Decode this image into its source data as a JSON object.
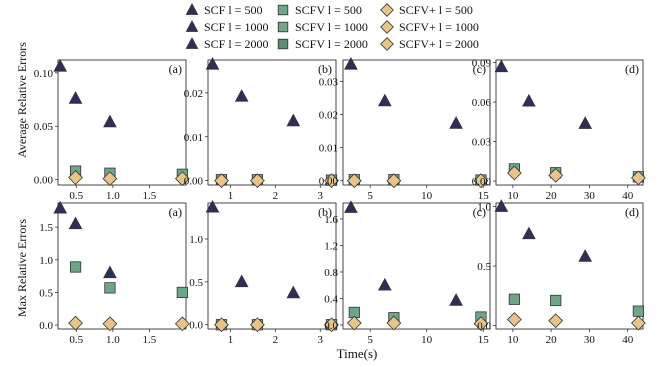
{
  "legend": [
    {
      "method": "SCF",
      "label": "SCF l = 500",
      "marker": "triangle",
      "color": "#2e2e5a"
    },
    {
      "method": "SCF",
      "label": "SCF l = 1000",
      "marker": "triangle",
      "color": "#2e2e5a"
    },
    {
      "method": "SCF",
      "label": "SCF l = 2000",
      "marker": "triangle",
      "color": "#2e2e5a"
    },
    {
      "method": "SCFV",
      "label": "SCFV l = 500",
      "marker": "square",
      "color": "#6ea68a"
    },
    {
      "method": "SCFV",
      "label": "SCFV l = 1000",
      "marker": "square",
      "color": "#6ea68a"
    },
    {
      "method": "SCFV",
      "label": "SCFV l = 2000",
      "marker": "square",
      "color": "#5a8f76"
    },
    {
      "method": "SCFV+",
      "label": "SCFV+ l = 500",
      "marker": "diamond",
      "color": "#e8c488"
    },
    {
      "method": "SCFV+",
      "label": "SCFV+ l = 1000",
      "marker": "diamond",
      "color": "#e8c488"
    },
    {
      "method": "SCFV+",
      "label": "SCFV+ l = 2000",
      "marker": "diamond",
      "color": "#e8c488"
    }
  ],
  "row_labels": [
    "Average Relative Errors",
    "Max Relative Errors"
  ],
  "xlabel": "Time(s)",
  "chart_data": [
    {
      "type": "scatter",
      "panel": "(a)",
      "row": 0,
      "col": 0,
      "xlim": [
        0.25,
        2.0
      ],
      "ylim": [
        -0.005,
        0.112
      ],
      "xticks": [
        "0.5",
        "1.0",
        "1.5"
      ],
      "xtick_values": [
        0.5,
        1.0,
        1.5
      ],
      "yticks": [
        "0.00",
        "0.05",
        "0.10"
      ],
      "ytick_values": [
        0.0,
        0.05,
        0.1
      ],
      "series": [
        {
          "method": "SCF",
          "points": [
            [
              0.28,
              0.106
            ],
            [
              0.49,
              0.076
            ],
            [
              0.96,
              0.054
            ]
          ]
        },
        {
          "method": "SCFV",
          "points": [
            [
              0.49,
              0.008
            ],
            [
              0.96,
              0.006
            ],
            [
              1.95,
              0.005
            ]
          ]
        },
        {
          "method": "SCFV+",
          "points": [
            [
              0.49,
              0.002
            ],
            [
              0.96,
              0.001
            ],
            [
              1.95,
              0.001
            ]
          ]
        }
      ]
    },
    {
      "type": "scatter",
      "panel": "(b)",
      "row": 0,
      "col": 1,
      "xlim": [
        0.5,
        3.35
      ],
      "ylim": [
        -0.001,
        0.0275
      ],
      "xticks": [
        "1",
        "2",
        "3"
      ],
      "xtick_values": [
        1,
        2,
        3
      ],
      "yticks": [
        "0.00",
        "0.01",
        "0.02"
      ],
      "ytick_values": [
        0.0,
        0.01,
        0.02
      ],
      "series": [
        {
          "method": "SCF",
          "points": [
            [
              0.6,
              0.0265
            ],
            [
              1.25,
              0.0192
            ],
            [
              2.4,
              0.0136
            ]
          ]
        },
        {
          "method": "SCFV",
          "points": [
            [
              0.8,
              0.0002
            ],
            [
              1.6,
              0.0002
            ],
            [
              3.25,
              0.0001
            ]
          ]
        },
        {
          "method": "SCFV+",
          "points": [
            [
              0.8,
              0.0
            ],
            [
              1.6,
              0.0
            ],
            [
              3.25,
              0.0
            ]
          ]
        }
      ]
    },
    {
      "type": "scatter",
      "panel": "(c)",
      "row": 0,
      "col": 2,
      "xlim": [
        2.6,
        15.6
      ],
      "ylim": [
        -0.0013,
        0.0365
      ],
      "xticks": [
        "5",
        "10",
        "15"
      ],
      "xtick_values": [
        5,
        10,
        15
      ],
      "yticks": [
        "0.00",
        "0.01",
        "0.02",
        "0.03"
      ],
      "ytick_values": [
        0.0,
        0.01,
        0.02,
        0.03
      ],
      "series": [
        {
          "method": "SCF",
          "points": [
            [
              3.3,
              0.0352
            ],
            [
              6.3,
              0.0241
            ],
            [
              12.6,
              0.0173
            ]
          ]
        },
        {
          "method": "SCFV",
          "points": [
            [
              3.6,
              0.0003
            ],
            [
              7.1,
              0.0003
            ],
            [
              14.8,
              0.0002
            ]
          ]
        },
        {
          "method": "SCFV+",
          "points": [
            [
              3.6,
              0.0
            ],
            [
              7.1,
              0.0
            ],
            [
              14.8,
              0.0
            ]
          ]
        }
      ]
    },
    {
      "type": "scatter",
      "panel": "(d)",
      "row": 0,
      "col": 3,
      "xlim": [
        5.6,
        44.0
      ],
      "ylim": [
        -0.003,
        0.092
      ],
      "xticks": [
        "10",
        "20",
        "30",
        "40"
      ],
      "xtick_values": [
        10,
        20,
        30,
        40
      ],
      "yticks": [
        "0.00",
        "0.03",
        "0.06",
        "0.09"
      ],
      "ytick_values": [
        0.0,
        0.03,
        0.06,
        0.09
      ],
      "series": [
        {
          "method": "SCF",
          "points": [
            [
              7.0,
              0.0868
            ],
            [
              14.2,
              0.0607
            ],
            [
              28.9,
              0.0437
            ]
          ]
        },
        {
          "method": "SCFV",
          "points": [
            [
              10.4,
              0.0092
            ],
            [
              21.2,
              0.0063
            ],
            [
              42.8,
              0.0032
            ]
          ]
        },
        {
          "method": "SCFV+",
          "points": [
            [
              10.4,
              0.0061
            ],
            [
              21.2,
              0.0043
            ],
            [
              42.8,
              0.0024
            ]
          ]
        }
      ]
    },
    {
      "type": "scatter",
      "panel": "(a)",
      "row": 1,
      "col": 0,
      "xlim": [
        0.25,
        2.0
      ],
      "ylim": [
        -0.06,
        1.87
      ],
      "xticks": [
        "0.5",
        "1.0",
        "1.5"
      ],
      "xtick_values": [
        0.5,
        1.0,
        1.5
      ],
      "yticks": [
        "0.0",
        "0.5",
        "1.0",
        "1.5"
      ],
      "ytick_values": [
        0.0,
        0.5,
        1.0,
        1.5
      ],
      "series": [
        {
          "method": "SCF",
          "points": [
            [
              0.28,
              1.79
            ],
            [
              0.49,
              1.55
            ],
            [
              0.96,
              0.8
            ]
          ]
        },
        {
          "method": "SCFV",
          "points": [
            [
              0.49,
              0.89
            ],
            [
              0.96,
              0.57
            ],
            [
              1.95,
              0.5
            ]
          ]
        },
        {
          "method": "SCFV+",
          "points": [
            [
              0.49,
              0.03
            ],
            [
              0.96,
              0.02
            ],
            [
              1.95,
              0.02
            ]
          ]
        }
      ]
    },
    {
      "type": "scatter",
      "panel": "(b)",
      "row": 1,
      "col": 1,
      "xlim": [
        0.5,
        3.35
      ],
      "ylim": [
        -0.05,
        1.42
      ],
      "xticks": [
        "1",
        "2",
        "3"
      ],
      "xtick_values": [
        1,
        2,
        3
      ],
      "yticks": [
        "0.0",
        "0.5",
        "1.0"
      ],
      "ytick_values": [
        0.0,
        0.5,
        1.0
      ],
      "series": [
        {
          "method": "SCF",
          "points": [
            [
              0.6,
              1.37
            ],
            [
              1.25,
              0.5
            ],
            [
              2.4,
              0.37
            ]
          ]
        },
        {
          "method": "SCFV",
          "points": [
            [
              0.8,
              0.0
            ],
            [
              1.6,
              0.0
            ],
            [
              3.25,
              0.0
            ]
          ]
        },
        {
          "method": "SCFV+",
          "points": [
            [
              0.8,
              0.0
            ],
            [
              1.6,
              0.0
            ],
            [
              3.25,
              0.0
            ]
          ]
        }
      ]
    },
    {
      "type": "scatter",
      "panel": "(c)",
      "row": 1,
      "col": 2,
      "xlim": [
        2.6,
        15.6
      ],
      "ylim": [
        -0.06,
        1.84
      ],
      "xticks": [
        "5",
        "10",
        "15"
      ],
      "xtick_values": [
        5,
        10,
        15
      ],
      "yticks": [
        "0.0",
        "0.4",
        "0.8",
        "1.2",
        "1.6"
      ],
      "ytick_values": [
        0.0,
        0.4,
        0.8,
        1.2,
        1.6
      ],
      "series": [
        {
          "method": "SCF",
          "points": [
            [
              3.3,
              1.77
            ],
            [
              6.3,
              0.6
            ],
            [
              12.6,
              0.37
            ]
          ]
        },
        {
          "method": "SCFV",
          "points": [
            [
              3.6,
              0.19
            ],
            [
              7.1,
              0.11
            ],
            [
              14.8,
              0.12
            ]
          ]
        },
        {
          "method": "SCFV+",
          "points": [
            [
              3.6,
              0.03
            ],
            [
              7.1,
              0.03
            ],
            [
              14.8,
              0.02
            ]
          ]
        }
      ]
    },
    {
      "type": "scatter",
      "panel": "(d)",
      "row": 1,
      "col": 3,
      "xlim": [
        5.6,
        44.0
      ],
      "ylim": [
        -0.03,
        1.03
      ],
      "xticks": [
        "10",
        "20",
        "30",
        "40"
      ],
      "xtick_values": [
        10,
        20,
        30,
        40
      ],
      "yticks": [
        "0.0",
        "0.5",
        "1.0"
      ],
      "ytick_values": [
        0.0,
        0.5,
        1.0
      ],
      "series": [
        {
          "method": "SCF",
          "points": [
            [
              7.0,
              1.0
            ],
            [
              14.2,
              0.77
            ],
            [
              28.9,
              0.58
            ]
          ]
        },
        {
          "method": "SCFV",
          "points": [
            [
              10.4,
              0.22
            ],
            [
              21.2,
              0.21
            ],
            [
              42.8,
              0.12
            ]
          ]
        },
        {
          "method": "SCFV+",
          "points": [
            [
              10.4,
              0.05
            ],
            [
              21.2,
              0.04
            ],
            [
              42.8,
              0.02
            ]
          ]
        }
      ]
    }
  ]
}
